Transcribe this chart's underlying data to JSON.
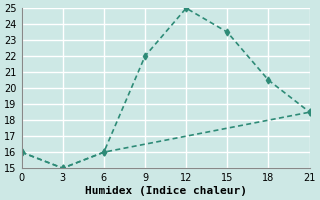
{
  "line1_x": [
    0,
    3,
    6,
    9,
    12,
    15,
    18,
    21
  ],
  "line1_y": [
    16,
    15,
    16,
    22,
    25,
    23.5,
    20.5,
    18.5
  ],
  "line2_x": [
    0,
    3,
    6,
    21
  ],
  "line2_y": [
    16,
    15,
    16,
    18.5
  ],
  "color": "#2e8b77",
  "bg_color": "#cde8e5",
  "grid_color": "#ffffff",
  "xlabel": "Humidex (Indice chaleur)",
  "xlim": [
    0,
    21
  ],
  "ylim": [
    15,
    25
  ],
  "xticks": [
    0,
    3,
    6,
    9,
    12,
    15,
    18,
    21
  ],
  "yticks": [
    15,
    16,
    17,
    18,
    19,
    20,
    21,
    22,
    23,
    24,
    25
  ],
  "xlabel_fontsize": 8,
  "tick_fontsize": 7,
  "linewidth": 1.2,
  "marker": "d",
  "markersize": 3.5
}
